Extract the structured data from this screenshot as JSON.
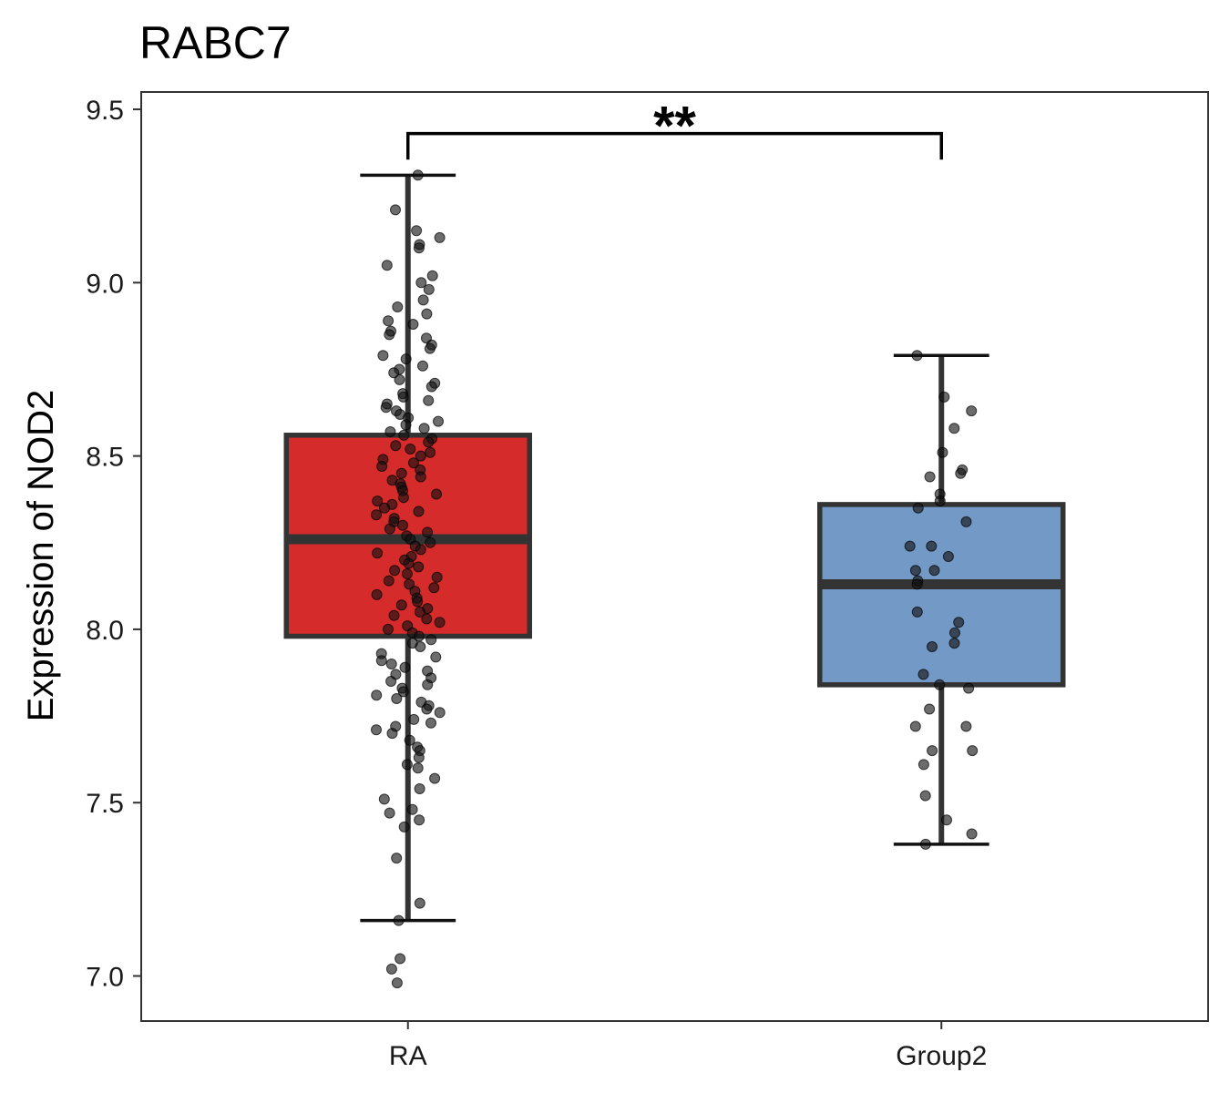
{
  "chart_data": {
    "type": "box",
    "title": "RABC7",
    "xlabel": "",
    "ylabel": "Expression of NOD2",
    "ylim": [
      6.87,
      9.55
    ],
    "yticks": [
      "7.0",
      "7.5",
      "8.0",
      "8.5",
      "9.0",
      "9.5"
    ],
    "categories": [
      "RA",
      "Group2"
    ],
    "grid": false,
    "legend": "none",
    "significance": {
      "from": "RA",
      "to": "Group2",
      "label": "**"
    },
    "boxes": [
      {
        "name": "RA",
        "color": "#d62b2b",
        "whisker_low": 7.16,
        "q1": 7.98,
        "median": 8.26,
        "q3": 8.56,
        "whisker_high": 9.31
      },
      {
        "name": "Group2",
        "color": "#7399c6",
        "whisker_low": 7.38,
        "q1": 7.84,
        "median": 8.13,
        "q3": 8.36,
        "whisker_high": 8.79
      }
    ],
    "points": {
      "RA": [
        9.31,
        9.21,
        9.15,
        9.13,
        9.11,
        9.1,
        9.05,
        9.02,
        9.0,
        8.98,
        8.95,
        8.93,
        8.91,
        8.89,
        8.88,
        8.86,
        8.85,
        8.84,
        8.82,
        8.81,
        8.79,
        8.78,
        8.76,
        8.75,
        8.74,
        8.72,
        8.71,
        8.7,
        8.68,
        8.67,
        8.66,
        8.65,
        8.64,
        8.63,
        8.62,
        8.61,
        8.6,
        8.59,
        8.58,
        8.57,
        8.56,
        8.55,
        8.54,
        8.53,
        8.52,
        8.51,
        8.5,
        8.49,
        8.48,
        8.47,
        8.46,
        8.45,
        8.44,
        8.43,
        8.42,
        8.41,
        8.4,
        8.39,
        8.38,
        8.37,
        8.36,
        8.35,
        8.34,
        8.33,
        8.32,
        8.31,
        8.3,
        8.29,
        8.28,
        8.27,
        8.26,
        8.25,
        8.24,
        8.23,
        8.22,
        8.21,
        8.2,
        8.19,
        8.18,
        8.17,
        8.16,
        8.15,
        8.14,
        8.13,
        8.12,
        8.11,
        8.1,
        8.09,
        8.08,
        8.07,
        8.06,
        8.05,
        8.04,
        8.03,
        8.02,
        8.01,
        8.0,
        7.99,
        7.98,
        7.97,
        7.96,
        7.95,
        7.93,
        7.92,
        7.91,
        7.9,
        7.89,
        7.88,
        7.87,
        7.86,
        7.85,
        7.84,
        7.83,
        7.82,
        7.81,
        7.8,
        7.79,
        7.78,
        7.77,
        7.76,
        7.74,
        7.73,
        7.72,
        7.71,
        7.7,
        7.68,
        7.66,
        7.65,
        7.63,
        7.61,
        7.6,
        7.57,
        7.54,
        7.51,
        7.48,
        7.47,
        7.45,
        7.43,
        7.34,
        7.21,
        7.16,
        7.05,
        7.02,
        6.98
      ],
      "Group2": [
        8.79,
        8.67,
        8.63,
        8.58,
        8.51,
        8.46,
        8.45,
        8.44,
        8.39,
        8.37,
        8.35,
        8.31,
        8.24,
        8.24,
        8.21,
        8.17,
        8.17,
        8.14,
        8.13,
        8.05,
        8.02,
        7.99,
        7.96,
        7.95,
        7.87,
        7.84,
        7.83,
        7.77,
        7.72,
        7.72,
        7.65,
        7.65,
        7.61,
        7.52,
        7.45,
        7.41,
        7.38
      ]
    }
  }
}
